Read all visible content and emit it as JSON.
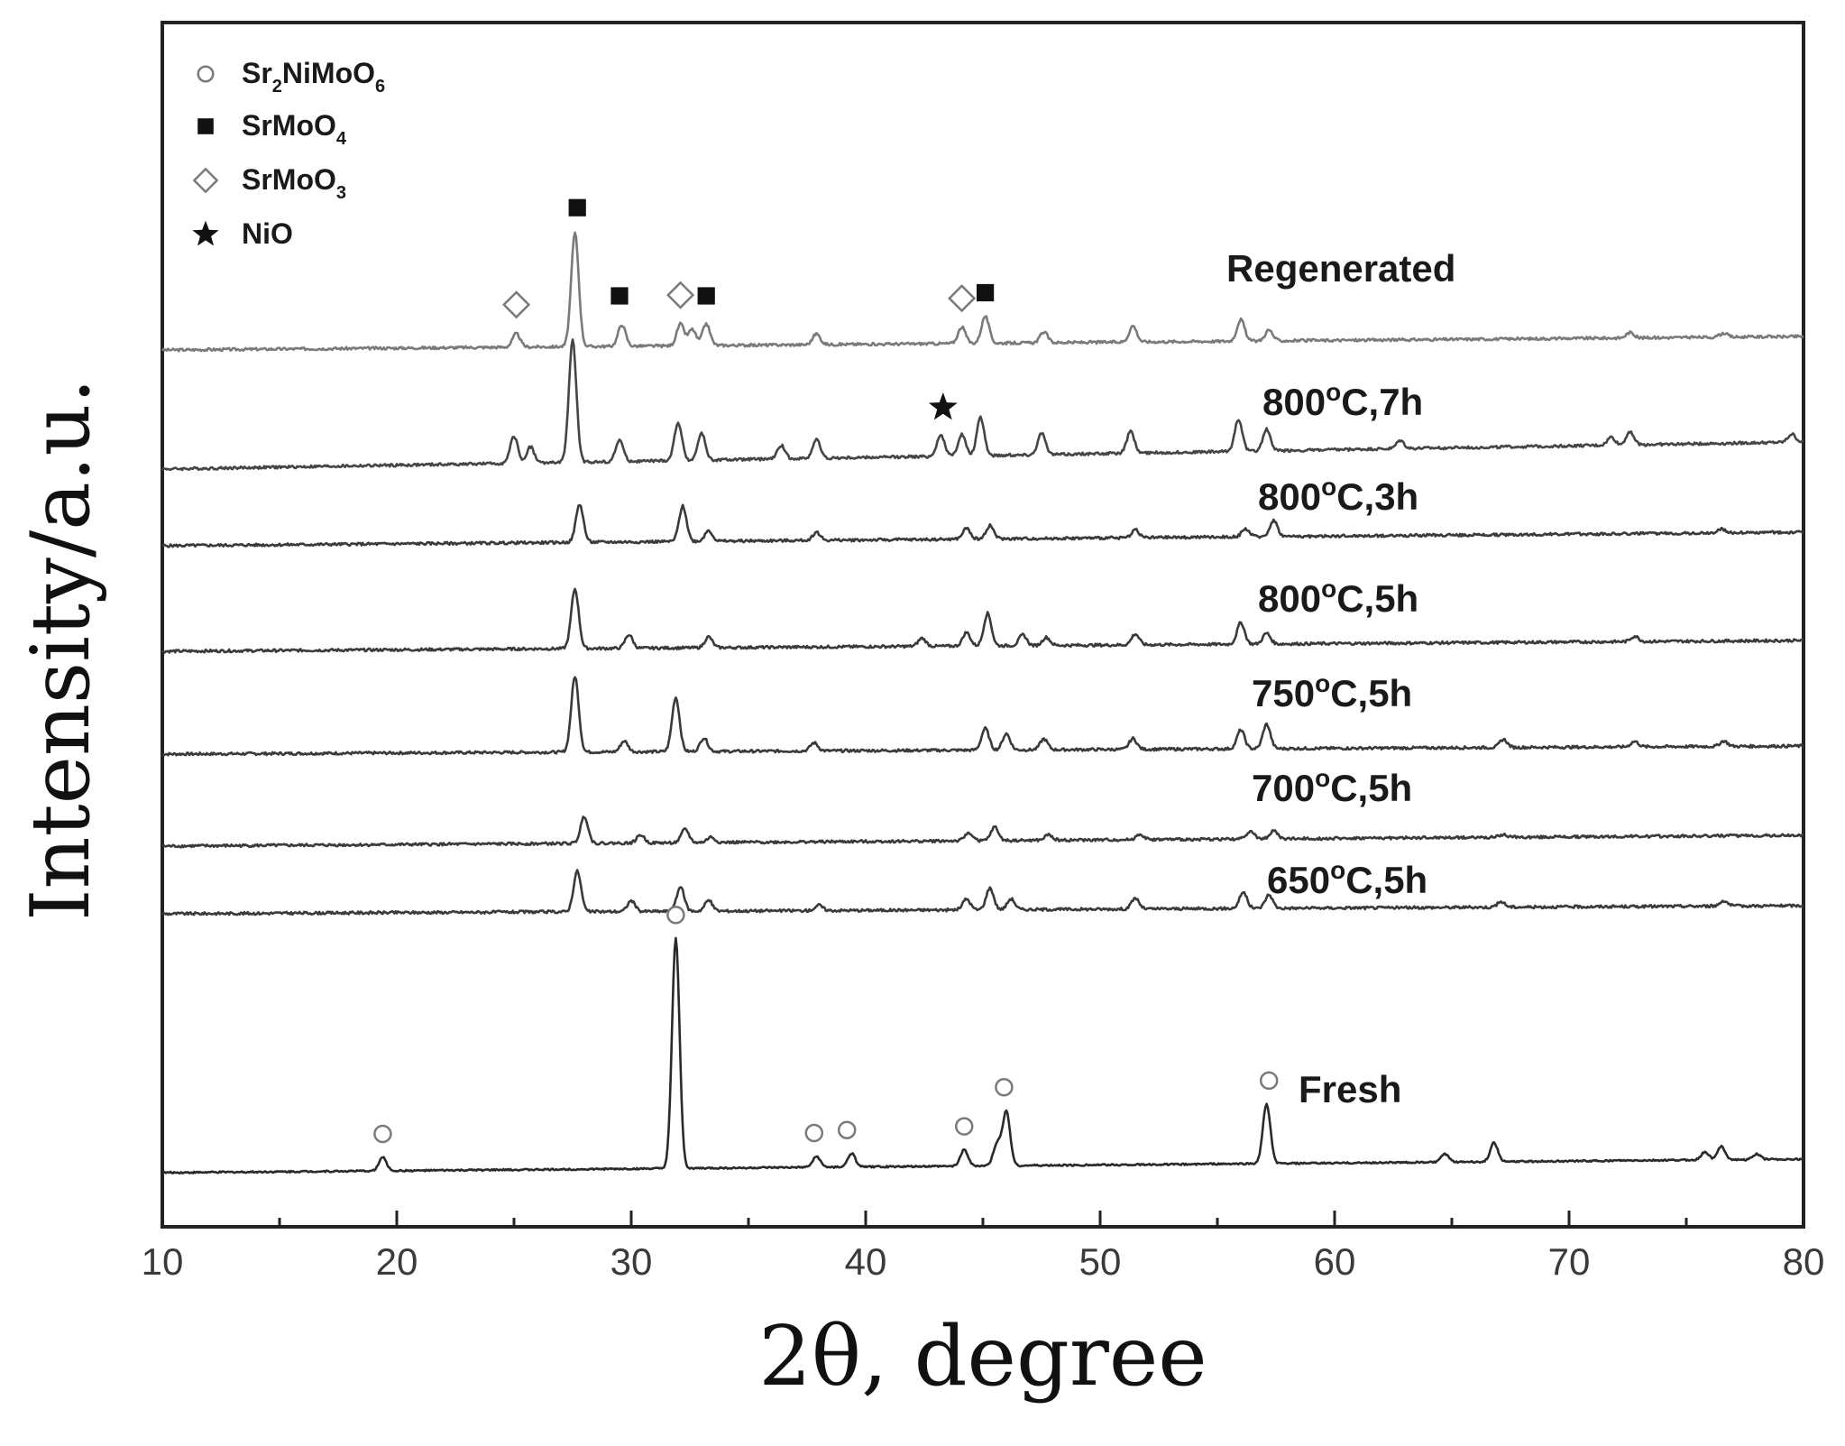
{
  "chart_data": {
    "type": "line",
    "title": "",
    "xlabel": "2θ, degree",
    "ylabel": "Intensity/a.u.",
    "xlim": [
      10,
      80
    ],
    "xticks": [
      "10",
      "20",
      "30",
      "40",
      "50",
      "60",
      "70",
      "80"
    ],
    "grid": false,
    "legend": {
      "placement": "top-left",
      "items": [
        {
          "marker": "open-circle",
          "base": "Sr",
          "sub1": "2",
          "mid": "NiMoO",
          "sub2": "6"
        },
        {
          "marker": "filled-square",
          "base": "SrMoO",
          "sub1": "4",
          "mid": "",
          "sub2": ""
        },
        {
          "marker": "open-diamond",
          "base": "SrMoO",
          "sub1": "3",
          "mid": "",
          "sub2": ""
        },
        {
          "marker": "star",
          "base": "NiO",
          "sub1": "",
          "mid": "",
          "sub2": ""
        }
      ]
    },
    "series": [
      {
        "name": "Regenerated",
        "label_parts": [
          "Regenerated"
        ],
        "color": "#7a7a7a",
        "baseline": [
          [
            10,
            0.0
          ],
          [
            80,
            0.05
          ]
        ],
        "peaks": [
          [
            25.1,
            0.05
          ],
          [
            27.6,
            0.42
          ],
          [
            29.6,
            0.08
          ],
          [
            32.1,
            0.08
          ],
          [
            32.6,
            0.06
          ],
          [
            33.2,
            0.08
          ],
          [
            37.9,
            0.04
          ],
          [
            44.1,
            0.06
          ],
          [
            45.1,
            0.1
          ],
          [
            47.6,
            0.04
          ],
          [
            51.4,
            0.06
          ],
          [
            56.0,
            0.08
          ],
          [
            57.2,
            0.04
          ],
          [
            72.6,
            0.02
          ],
          [
            76.6,
            0.015
          ]
        ]
      },
      {
        "name": "800°C,7h",
        "label_parts": [
          "800",
          "o",
          "C,7h"
        ],
        "color": "#454545",
        "baseline": [
          [
            10,
            0.0
          ],
          [
            80,
            0.1
          ]
        ],
        "peaks": [
          [
            25.0,
            0.1
          ],
          [
            25.7,
            0.06
          ],
          [
            27.5,
            0.45
          ],
          [
            29.5,
            0.08
          ],
          [
            32.0,
            0.14
          ],
          [
            33.0,
            0.1
          ],
          [
            36.4,
            0.05
          ],
          [
            37.9,
            0.07
          ],
          [
            43.2,
            0.08
          ],
          [
            44.1,
            0.08
          ],
          [
            44.9,
            0.14
          ],
          [
            47.5,
            0.08
          ],
          [
            51.3,
            0.08
          ],
          [
            55.9,
            0.12
          ],
          [
            57.1,
            0.08
          ],
          [
            62.8,
            0.03
          ],
          [
            71.8,
            0.03
          ],
          [
            72.6,
            0.05
          ],
          [
            79.5,
            0.03
          ]
        ]
      },
      {
        "name": "800°C,3h",
        "label_parts": [
          "800",
          "o",
          "C,3h"
        ],
        "color": "#3a3a3a",
        "baseline": [
          [
            10,
            0.0
          ],
          [
            80,
            0.05
          ]
        ],
        "peaks": [
          [
            27.8,
            0.14
          ],
          [
            32.2,
            0.13
          ],
          [
            33.3,
            0.04
          ],
          [
            37.9,
            0.03
          ],
          [
            44.3,
            0.04
          ],
          [
            45.3,
            0.05
          ],
          [
            51.5,
            0.03
          ],
          [
            56.2,
            0.03
          ],
          [
            57.4,
            0.06
          ],
          [
            76.5,
            0.015
          ]
        ]
      },
      {
        "name": "800°C,5h",
        "label_parts": [
          "800",
          "o",
          "C,5h"
        ],
        "color": "#3a3a3a",
        "baseline": [
          [
            10,
            0.0
          ],
          [
            80,
            0.04
          ]
        ],
        "peaks": [
          [
            27.6,
            0.22
          ],
          [
            29.9,
            0.05
          ],
          [
            33.3,
            0.04
          ],
          [
            42.4,
            0.03
          ],
          [
            44.3,
            0.05
          ],
          [
            45.2,
            0.12
          ],
          [
            46.7,
            0.04
          ],
          [
            47.7,
            0.03
          ],
          [
            51.5,
            0.04
          ],
          [
            56.0,
            0.08
          ],
          [
            57.1,
            0.04
          ],
          [
            72.8,
            0.02
          ]
        ]
      },
      {
        "name": "750°C,5h",
        "label_parts": [
          "750",
          "o",
          "C,5h"
        ],
        "color": "#3a3a3a",
        "baseline": [
          [
            10,
            0.0
          ],
          [
            80,
            0.03
          ]
        ],
        "peaks": [
          [
            27.6,
            0.28
          ],
          [
            29.7,
            0.04
          ],
          [
            31.9,
            0.2
          ],
          [
            33.1,
            0.05
          ],
          [
            37.8,
            0.03
          ],
          [
            45.1,
            0.08
          ],
          [
            46.0,
            0.06
          ],
          [
            47.6,
            0.04
          ],
          [
            51.4,
            0.04
          ],
          [
            56.0,
            0.07
          ],
          [
            57.1,
            0.09
          ],
          [
            67.2,
            0.03
          ],
          [
            72.8,
            0.02
          ],
          [
            76.6,
            0.02
          ]
        ]
      },
      {
        "name": "700°C,5h",
        "label_parts": [
          "700",
          "o",
          "C,5h"
        ],
        "color": "#3a3a3a",
        "baseline": [
          [
            10,
            0.0
          ],
          [
            80,
            0.04
          ]
        ],
        "peaks": [
          [
            28.0,
            0.1
          ],
          [
            30.4,
            0.03
          ],
          [
            32.3,
            0.05
          ],
          [
            33.4,
            0.02
          ],
          [
            44.4,
            0.03
          ],
          [
            45.5,
            0.05
          ],
          [
            47.8,
            0.02
          ],
          [
            51.7,
            0.02
          ],
          [
            56.4,
            0.03
          ],
          [
            57.4,
            0.03
          ],
          [
            67.2,
            0.01
          ]
        ]
      },
      {
        "name": "650°C,5h",
        "label_parts": [
          "650",
          "o",
          "C,5h"
        ],
        "color": "#3a3a3a",
        "baseline": [
          [
            10,
            0.0
          ],
          [
            80,
            0.03
          ]
        ],
        "peaks": [
          [
            27.7,
            0.15
          ],
          [
            30.0,
            0.04
          ],
          [
            32.1,
            0.09
          ],
          [
            33.3,
            0.04
          ],
          [
            38.0,
            0.02
          ],
          [
            44.3,
            0.04
          ],
          [
            45.3,
            0.08
          ],
          [
            46.2,
            0.04
          ],
          [
            51.5,
            0.04
          ],
          [
            56.1,
            0.06
          ],
          [
            57.2,
            0.05
          ],
          [
            67.1,
            0.02
          ],
          [
            76.6,
            0.02
          ]
        ]
      },
      {
        "name": "Fresh",
        "label_parts": [
          "Fresh"
        ],
        "color": "#2a2a2a",
        "baseline": [
          [
            10,
            0.0
          ],
          [
            80,
            0.05
          ]
        ],
        "peaks": [
          [
            19.4,
            0.05
          ],
          [
            31.9,
            0.85
          ],
          [
            37.9,
            0.04
          ],
          [
            39.4,
            0.05
          ],
          [
            44.2,
            0.06
          ],
          [
            45.6,
            0.08
          ],
          [
            46.0,
            0.2
          ],
          [
            57.1,
            0.22
          ],
          [
            64.7,
            0.03
          ],
          [
            66.8,
            0.07
          ],
          [
            75.8,
            0.03
          ],
          [
            76.5,
            0.05
          ],
          [
            78.0,
            0.02
          ]
        ]
      }
    ],
    "annotations": [
      {
        "series": "Regenerated",
        "marker": "open-diamond",
        "x": 25.1
      },
      {
        "series": "Regenerated",
        "marker": "filled-square",
        "x": 27.7
      },
      {
        "series": "Regenerated",
        "marker": "filled-square",
        "x": 29.5
      },
      {
        "series": "Regenerated",
        "marker": "open-diamond",
        "x": 32.1
      },
      {
        "series": "Regenerated",
        "marker": "filled-square",
        "x": 33.2
      },
      {
        "series": "Regenerated",
        "marker": "open-diamond",
        "x": 44.1
      },
      {
        "series": "Regenerated",
        "marker": "filled-square",
        "x": 45.1
      },
      {
        "series": "800°C,7h",
        "marker": "star",
        "x": 43.3
      },
      {
        "series": "Fresh",
        "marker": "open-circle",
        "x": 19.4
      },
      {
        "series": "Fresh",
        "marker": "open-circle",
        "x": 31.9
      },
      {
        "series": "Fresh",
        "marker": "open-circle",
        "x": 37.8
      },
      {
        "series": "Fresh",
        "marker": "open-circle",
        "x": 39.2
      },
      {
        "series": "Fresh",
        "marker": "open-circle",
        "x": 44.2
      },
      {
        "series": "Fresh",
        "marker": "open-circle",
        "x": 45.9
      },
      {
        "series": "Fresh",
        "marker": "open-circle",
        "x": 57.2
      }
    ]
  }
}
